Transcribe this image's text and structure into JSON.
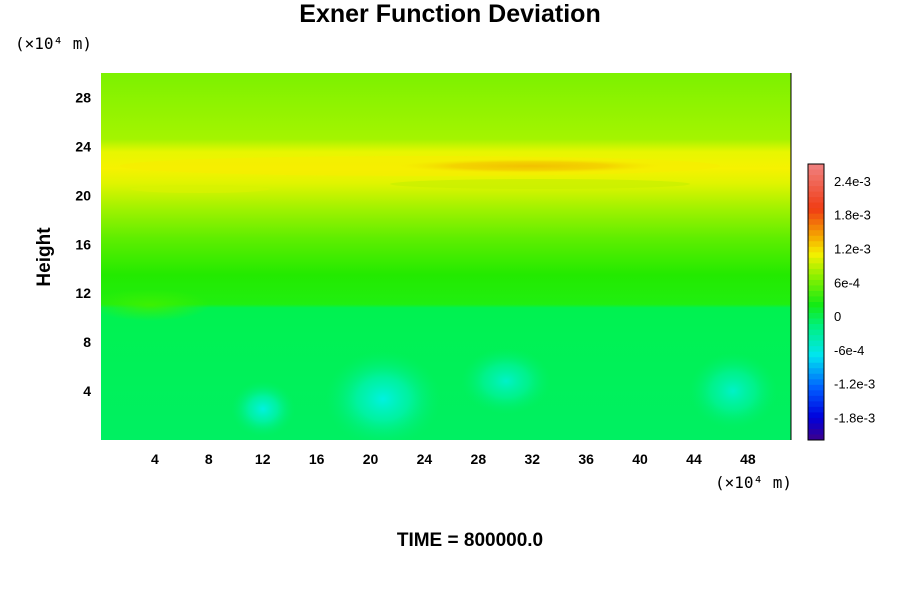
{
  "chart_data": {
    "type": "heatmap",
    "title": "Exner Function Deviation",
    "ylabel": "Height",
    "x_unit": "(×10⁴ m)",
    "y_unit": "(×10⁴ m)",
    "x_ticks": [
      4,
      8,
      12,
      16,
      20,
      24,
      28,
      32,
      36,
      40,
      44,
      48
    ],
    "y_ticks": [
      4,
      8,
      12,
      16,
      20,
      24,
      28
    ],
    "xlim": [
      0,
      51.2
    ],
    "ylim": [
      0,
      30
    ],
    "colorbar": {
      "labels": [
        "2.4e-3",
        "1.8e-3",
        "1.2e-3",
        "6e-4",
        "0",
        "-6e-4",
        "-1.2e-3",
        "-1.8e-3"
      ],
      "values": [
        0.0024,
        0.0018,
        0.0012,
        0.0006,
        0,
        -0.0006,
        -0.0012,
        -0.0018
      ],
      "range": [
        -0.0022,
        0.0027
      ]
    },
    "features": [
      {
        "kind": "band",
        "y_center": 22.3,
        "value": 0.0012
      },
      {
        "kind": "band",
        "y_center": 13.5,
        "value": 0.0003
      },
      {
        "kind": "blob",
        "x_center": 31,
        "y_center": 22.3,
        "value": 0.0017
      },
      {
        "kind": "blob",
        "x_center": 12,
        "y_center": 2.5,
        "value": -0.0006
      },
      {
        "kind": "blob",
        "x_center": 21,
        "y_center": 3.2,
        "value": -0.0006
      },
      {
        "kind": "blob",
        "x_center": 30,
        "y_center": 5,
        "value": -0.0004
      },
      {
        "kind": "blob",
        "x_center": 46.5,
        "y_center": 4,
        "value": -0.0004
      }
    ]
  },
  "footer": "TIME = 800000.0"
}
